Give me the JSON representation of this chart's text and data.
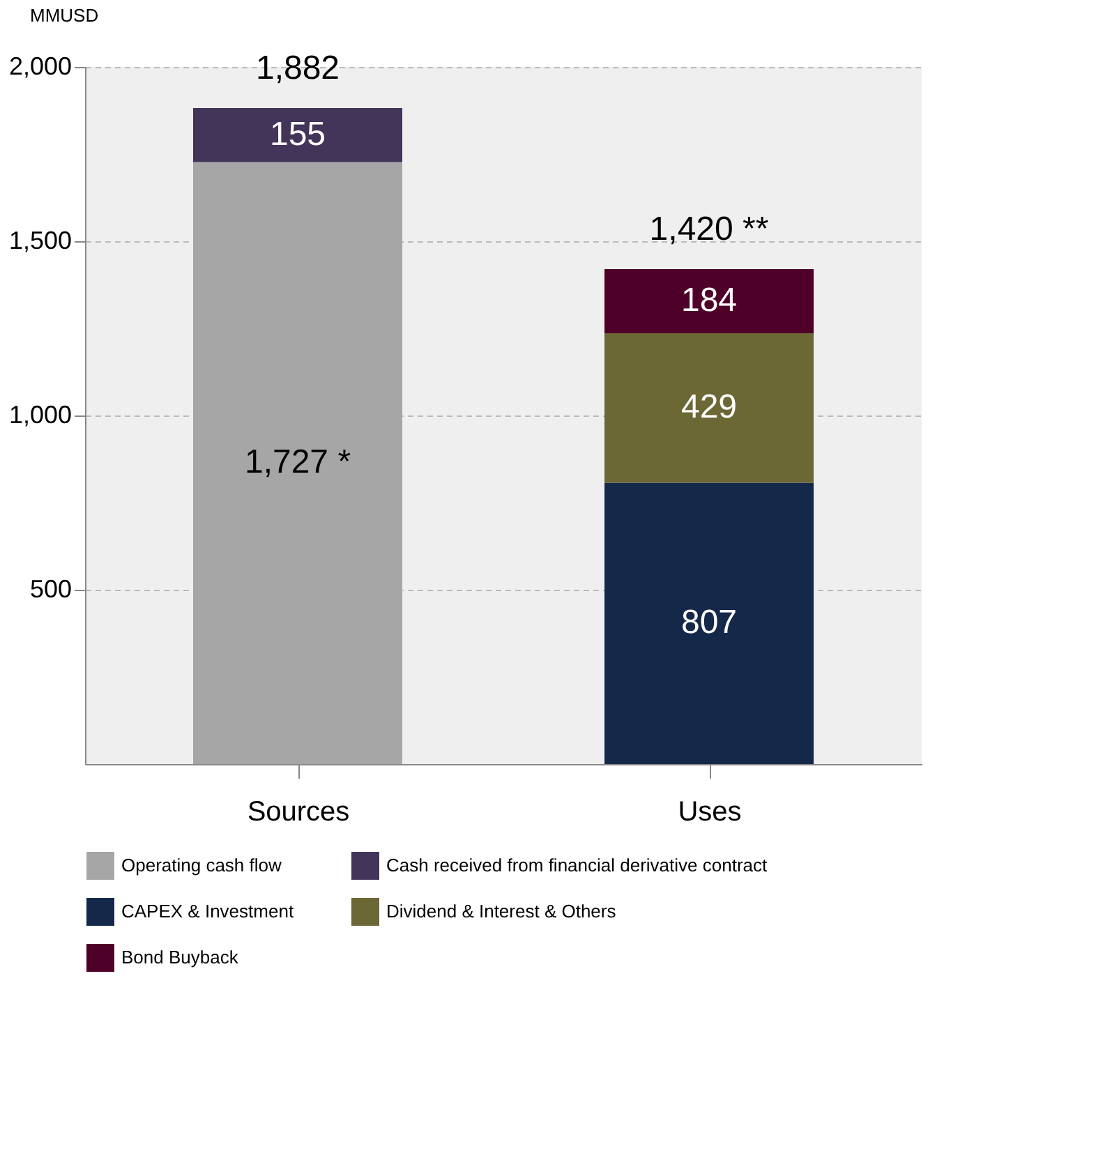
{
  "chart_data": {
    "type": "bar",
    "stacked": true,
    "ylabel": "MMUSD",
    "categories": [
      "Sources",
      "Uses"
    ],
    "series": [
      {
        "name": "Operating cash flow",
        "color": "#a6a6a6",
        "values": [
          1727,
          null
        ],
        "value_labels": [
          "1,727 *",
          null
        ]
      },
      {
        "name": "Cash received from financial derivative contract",
        "color": "#43345a",
        "values": [
          155,
          null
        ],
        "value_labels": [
          "155",
          null
        ]
      },
      {
        "name": "CAPEX & Investment",
        "color": "#14284a",
        "values": [
          null,
          807
        ],
        "value_labels": [
          null,
          "807"
        ]
      },
      {
        "name": "Dividend & Interest & Others",
        "color": "#6b6835",
        "values": [
          null,
          429
        ],
        "value_labels": [
          null,
          "429"
        ]
      },
      {
        "name": "Bond Buyback",
        "color": "#4f0029",
        "values": [
          null,
          184
        ],
        "value_labels": [
          null,
          "184"
        ]
      }
    ],
    "totals": [
      "1,882",
      "1,420 **"
    ],
    "ylim": [
      0,
      2000
    ],
    "yticks": [
      {
        "value": 500,
        "label": "500"
      },
      {
        "value": 1000,
        "label": "1,000"
      },
      {
        "value": 1500,
        "label": "1,500"
      },
      {
        "value": 2000,
        "label": "2,000"
      }
    ],
    "grid": "y",
    "legend": "bottom"
  }
}
